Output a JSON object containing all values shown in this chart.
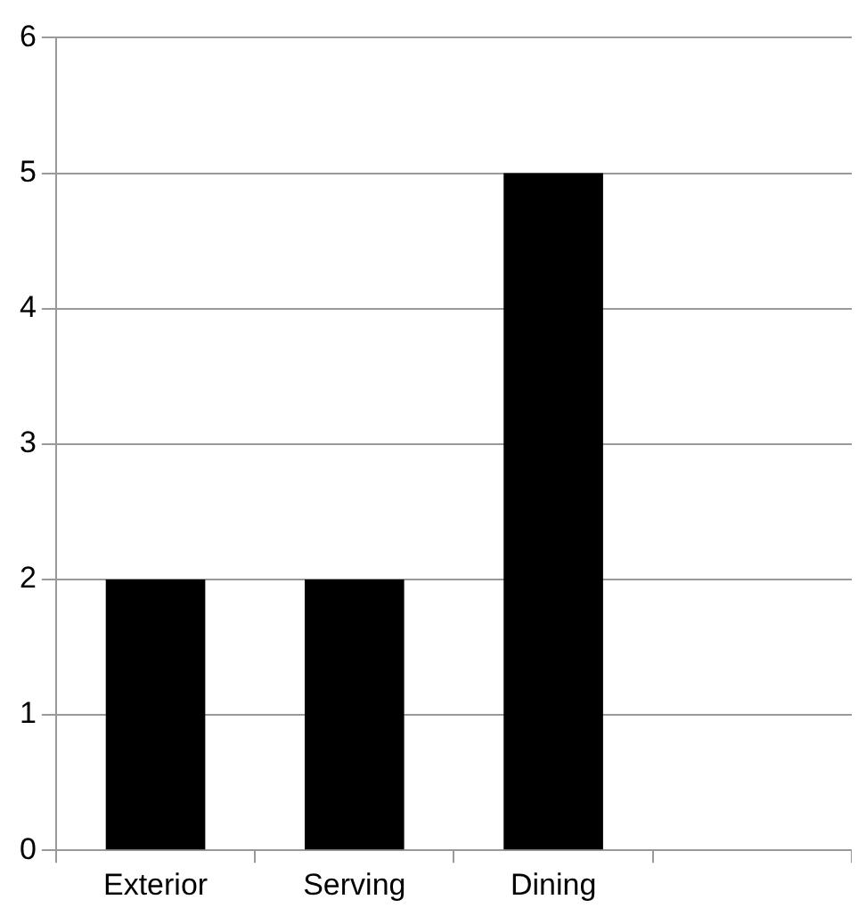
{
  "chart_data": {
    "type": "bar",
    "categories": [
      "Exterior",
      "Serving",
      "Dining",
      null
    ],
    "values": [
      2,
      2,
      5,
      null
    ],
    "color": "#000000",
    "ylim": [
      0,
      6
    ],
    "yticks": [
      0,
      1,
      2,
      3,
      4,
      5,
      6
    ],
    "grid": "y",
    "legend": false
  }
}
